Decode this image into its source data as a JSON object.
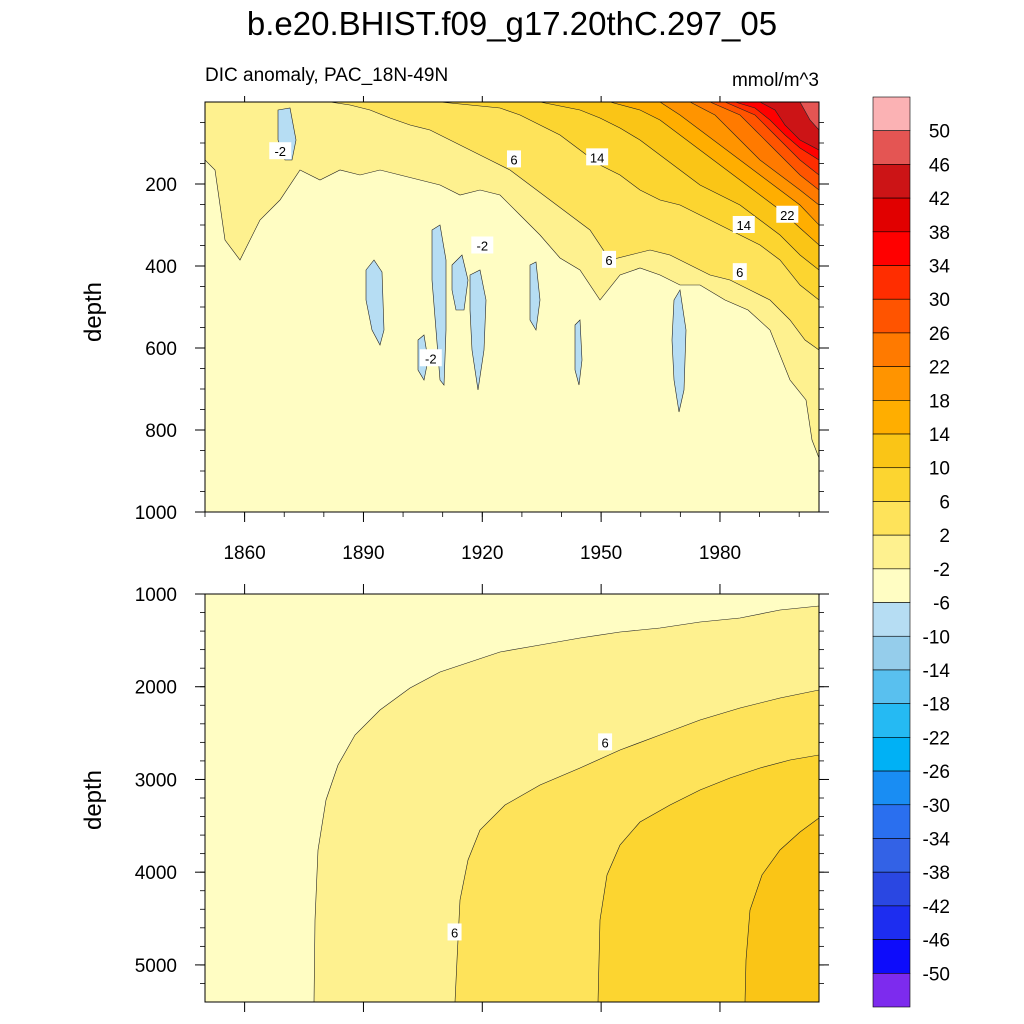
{
  "title": "b.e20.BHIST.f09_g17.20thC.297_05",
  "chart_data": [
    {
      "type": "heatmap",
      "panel": "upper",
      "subtitle_left": "DIC anomaly, PAC_18N-49N",
      "subtitle_right": "mmol/m^3",
      "ylabel": "depth",
      "xlabel": "",
      "xlim": [
        1850,
        2005
      ],
      "ylim": [
        1000,
        0
      ],
      "xticks": [
        1860,
        1890,
        1920,
        1950,
        1980
      ],
      "yticks": [
        200,
        400,
        600,
        800,
        1000
      ],
      "contour_labels": [
        {
          "text": "-2",
          "year": 1869,
          "depth": 120
        },
        {
          "text": "6",
          "year": 1928,
          "depth": 140
        },
        {
          "text": "14",
          "year": 1949,
          "depth": 135
        },
        {
          "text": "-2",
          "year": 1920,
          "depth": 350
        },
        {
          "text": "6",
          "year": 1952,
          "depth": 385
        },
        {
          "text": "14",
          "year": 1986,
          "depth": 300
        },
        {
          "text": "22",
          "year": 1997,
          "depth": 275
        },
        {
          "text": "6",
          "year": 1985,
          "depth": 415
        },
        {
          "text": "-2",
          "year": 1907,
          "depth": 625
        }
      ]
    },
    {
      "type": "heatmap",
      "panel": "lower",
      "ylabel": "depth",
      "xlim": [
        1850,
        2005
      ],
      "ylim": [
        1000,
        5400
      ],
      "yticks": [
        1000,
        2000,
        3000,
        4000,
        5000
      ],
      "contour_labels": [
        {
          "text": "6",
          "year": 1951,
          "depth": 2600
        },
        {
          "text": "6",
          "year": 1913,
          "depth": 4650
        }
      ]
    }
  ],
  "colorbar": {
    "labels": [
      "50",
      "46",
      "42",
      "38",
      "34",
      "30",
      "26",
      "22",
      "18",
      "14",
      "10",
      "6",
      "2",
      "-2",
      "-6",
      "-10",
      "-14",
      "-18",
      "-22",
      "-26",
      "-30",
      "-34",
      "-38",
      "-42",
      "-46",
      "-50"
    ],
    "colors": [
      "#fbb2b4",
      "#e45553",
      "#cc1416",
      "#e10000",
      "#ff0000",
      "#ff2d00",
      "#ff5400",
      "#ff7a00",
      "#ff9400",
      "#ffae00",
      "#fac516",
      "#fcd530",
      "#fee35a",
      "#fef18f",
      "#fffdc3",
      "#b6ddf3",
      "#95cdeb",
      "#59c0ef",
      "#25baf3",
      "#00b1f5",
      "#198df3",
      "#2a6fef",
      "#3362e6",
      "#2a47e2",
      "#1d2df0",
      "#0d0cfb",
      "#7d2bee"
    ]
  }
}
